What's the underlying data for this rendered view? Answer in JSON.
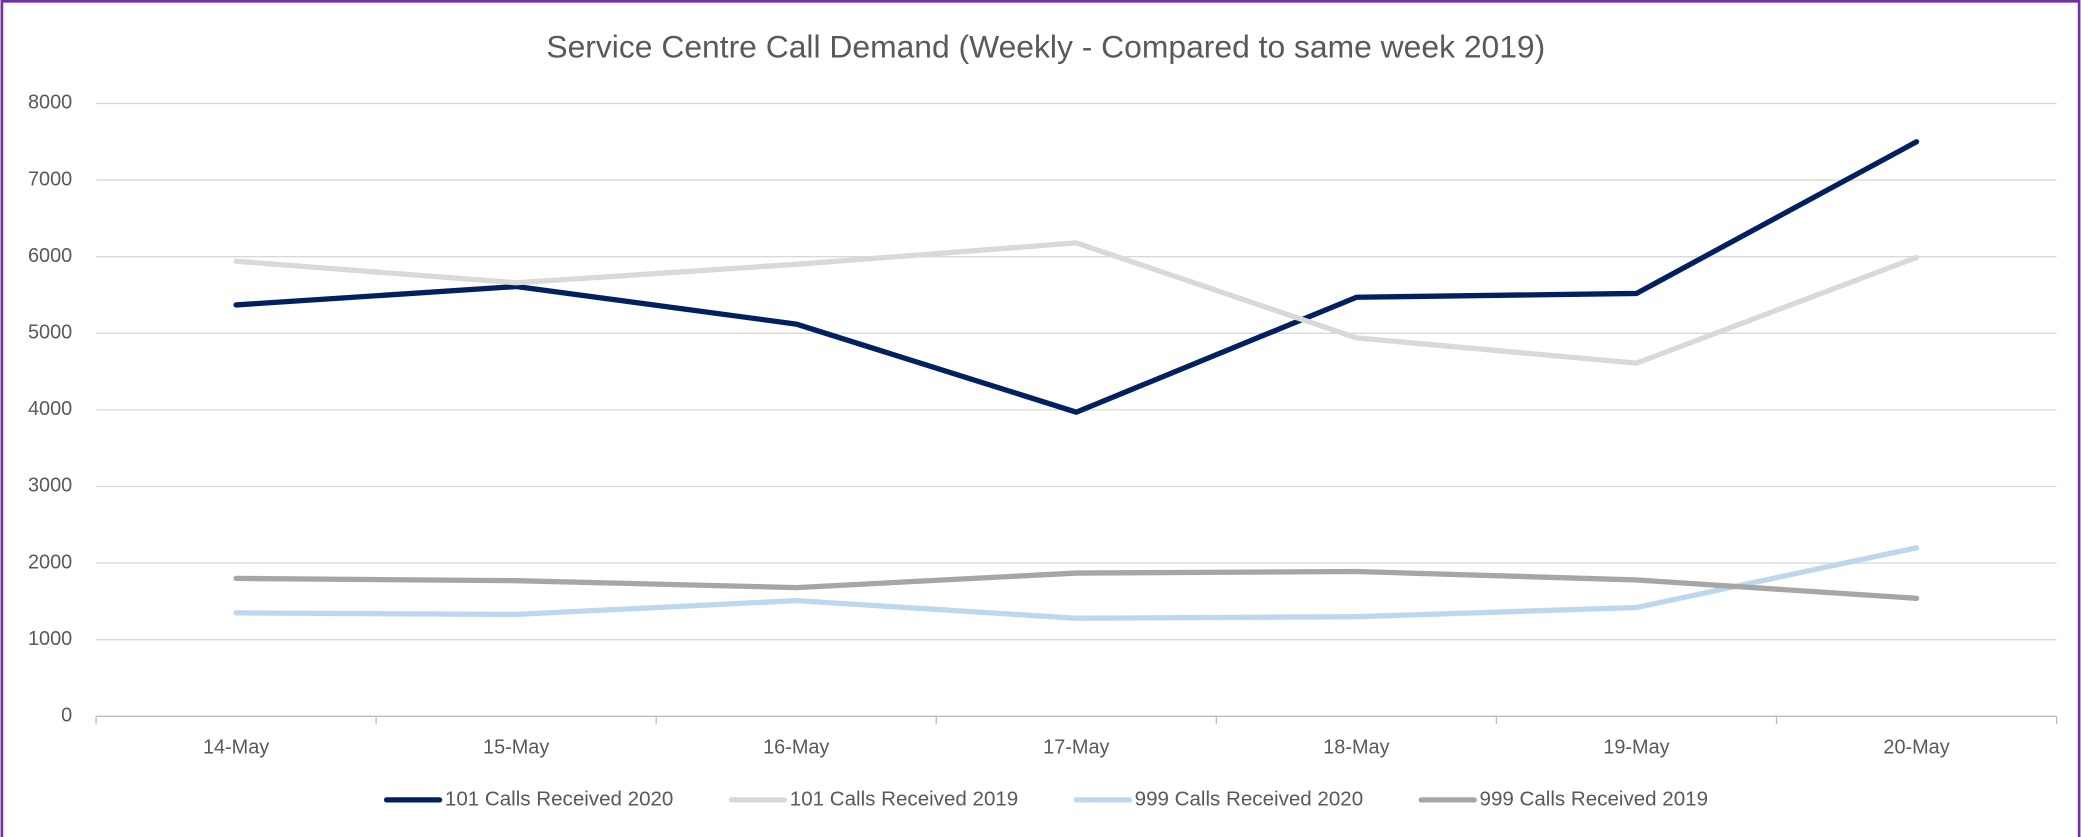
{
  "chart_data": {
    "type": "line",
    "title": "Service Centre Call Demand (Weekly - Compared to same week 2019)",
    "categories": [
      "14-May",
      "15-May",
      "16-May",
      "17-May",
      "18-May",
      "19-May",
      "20-May"
    ],
    "series": [
      {
        "name": "101 Calls Received 2020",
        "color": "#002060",
        "values": [
          5370,
          5610,
          5120,
          3970,
          5470,
          5520,
          7500
        ]
      },
      {
        "name": "101 Calls Received 2019",
        "color": "#d9d9d9",
        "values": [
          5940,
          5660,
          5900,
          6180,
          4940,
          4610,
          5990
        ]
      },
      {
        "name": "999 Calls Received 2020",
        "color": "#bdd7ee",
        "values": [
          1350,
          1330,
          1510,
          1280,
          1300,
          1420,
          2200
        ]
      },
      {
        "name": "999 Calls Received 2019",
        "color": "#a6a6a6",
        "values": [
          1800,
          1770,
          1680,
          1870,
          1890,
          1780,
          1540
        ]
      }
    ],
    "ylim": [
      0,
      8000
    ],
    "yticks": [
      0,
      1000,
      2000,
      3000,
      4000,
      5000,
      6000,
      7000,
      8000
    ],
    "grid": true,
    "legend": "bottom"
  }
}
